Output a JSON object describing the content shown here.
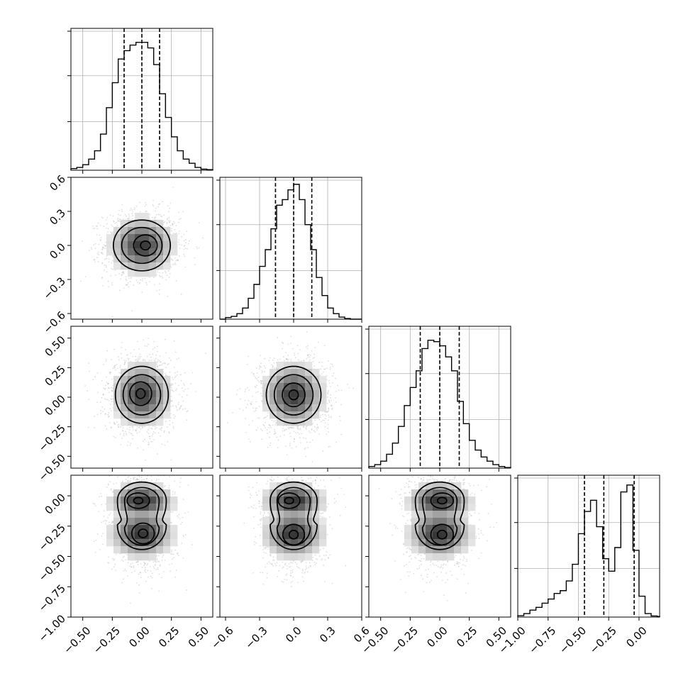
{
  "chart_data": {
    "type": "corner",
    "grid": true,
    "parameters": [
      {
        "range": [
          -0.6,
          0.6
        ],
        "ticks": [
          -0.5,
          -0.25,
          0.0,
          0.25,
          0.5
        ],
        "tick_labels": [
          "−0.50",
          "−0.25",
          "0.00",
          "0.25",
          "0.50"
        ],
        "quantiles": [
          -0.15,
          0.0,
          0.15
        ],
        "hist": {
          "bin_width": 0.05,
          "counts": [
            0.012,
            0.02,
            0.04,
            0.08,
            0.14,
            0.26,
            0.45,
            0.63,
            0.8,
            0.86,
            0.9,
            0.92,
            0.92,
            0.88,
            0.76,
            0.55,
            0.38,
            0.24,
            0.14,
            0.08,
            0.05,
            0.02,
            0.008,
            0.004
          ]
        }
      },
      {
        "range": [
          -0.65,
          0.6
        ],
        "ticks": [
          -0.6,
          -0.3,
          0.0,
          0.3,
          0.6
        ],
        "tick_labels": [
          "−0.6",
          "−0.3",
          "0.0",
          "0.3",
          "0.6"
        ],
        "quantiles": [
          -0.16,
          0.0,
          0.16
        ],
        "hist": {
          "bin_width": 0.05,
          "counts": [
            0.0,
            0.012,
            0.02,
            0.04,
            0.08,
            0.15,
            0.25,
            0.38,
            0.5,
            0.65,
            0.82,
            0.86,
            0.93,
            0.97,
            0.86,
            0.68,
            0.5,
            0.3,
            0.17,
            0.08,
            0.04,
            0.015,
            0.005,
            0.0,
            0.0
          ]
        }
      },
      {
        "range": [
          -0.6,
          0.6
        ],
        "ticks": [
          -0.5,
          -0.25,
          0.0,
          0.25,
          0.5
        ],
        "tick_labels": [
          "−0.50",
          "−0.25",
          "0.00",
          "0.25",
          "0.50"
        ],
        "quantiles": [
          -0.165,
          0.0,
          0.165
        ],
        "hist": {
          "bin_width": 0.05,
          "counts": [
            0.012,
            0.025,
            0.05,
            0.1,
            0.18,
            0.3,
            0.45,
            0.58,
            0.7,
            0.86,
            0.92,
            0.91,
            0.88,
            0.8,
            0.7,
            0.48,
            0.32,
            0.2,
            0.13,
            0.08,
            0.05,
            0.025,
            0.012,
            0.004
          ]
        }
      },
      {
        "range": [
          -1.0,
          0.17
        ],
        "ticks": [
          -1.0,
          -0.75,
          -0.5,
          -0.25,
          0.0
        ],
        "tick_labels": [
          "−1.00",
          "−0.75",
          "−0.50",
          "−0.25",
          "0.00"
        ],
        "quantiles": [
          -0.45,
          -0.29,
          -0.04
        ],
        "hist": {
          "bin_width": 0.05,
          "counts": [
            0.01,
            0.025,
            0.05,
            0.07,
            0.1,
            0.13,
            0.17,
            0.19,
            0.26,
            0.38,
            0.6,
            0.76,
            0.84,
            0.65,
            0.42,
            0.33,
            0.5,
            0.9,
            0.95,
            0.48,
            0.15,
            0.025,
            0.008,
            0.004
          ]
        }
      }
    ],
    "pairs": [
      {
        "row": 1,
        "col": 0,
        "mu": [
          0.0,
          0.0
        ],
        "sigma": [
          0.14,
          0.13
        ],
        "peak": [
          0.03,
          0.0
        ]
      },
      {
        "row": 2,
        "col": 0,
        "mu": [
          0.0,
          0.02
        ],
        "sigma": [
          0.13,
          0.14
        ],
        "peak": [
          -0.01,
          0.03
        ]
      },
      {
        "row": 2,
        "col": 1,
        "mu": [
          0.0,
          0.02
        ],
        "sigma": [
          0.14,
          0.14
        ],
        "peak": [
          0.0,
          0.02
        ]
      },
      {
        "row": 3,
        "col": 0,
        "bimodal": true,
        "mu": [
          0.0,
          -0.18
        ],
        "sigma": [
          0.14,
          0.16
        ],
        "modes": [
          -0.04,
          -0.32
        ],
        "peaks": [
          [
            -0.03,
            -0.04
          ],
          [
            0.01,
            -0.31
          ]
        ]
      },
      {
        "row": 3,
        "col": 1,
        "bimodal": true,
        "mu": [
          0.0,
          -0.18
        ],
        "sigma": [
          0.14,
          0.16
        ],
        "modes": [
          -0.04,
          -0.32
        ],
        "peaks": [
          [
            -0.04,
            -0.04
          ],
          [
            0.0,
            -0.32
          ]
        ]
      },
      {
        "row": 3,
        "col": 2,
        "bimodal": true,
        "mu": [
          0.0,
          -0.18
        ],
        "sigma": [
          0.14,
          0.16
        ],
        "modes": [
          -0.04,
          -0.32
        ],
        "peaks": [
          [
            0.02,
            -0.04
          ],
          [
            0.02,
            -0.32
          ]
        ]
      }
    ]
  }
}
